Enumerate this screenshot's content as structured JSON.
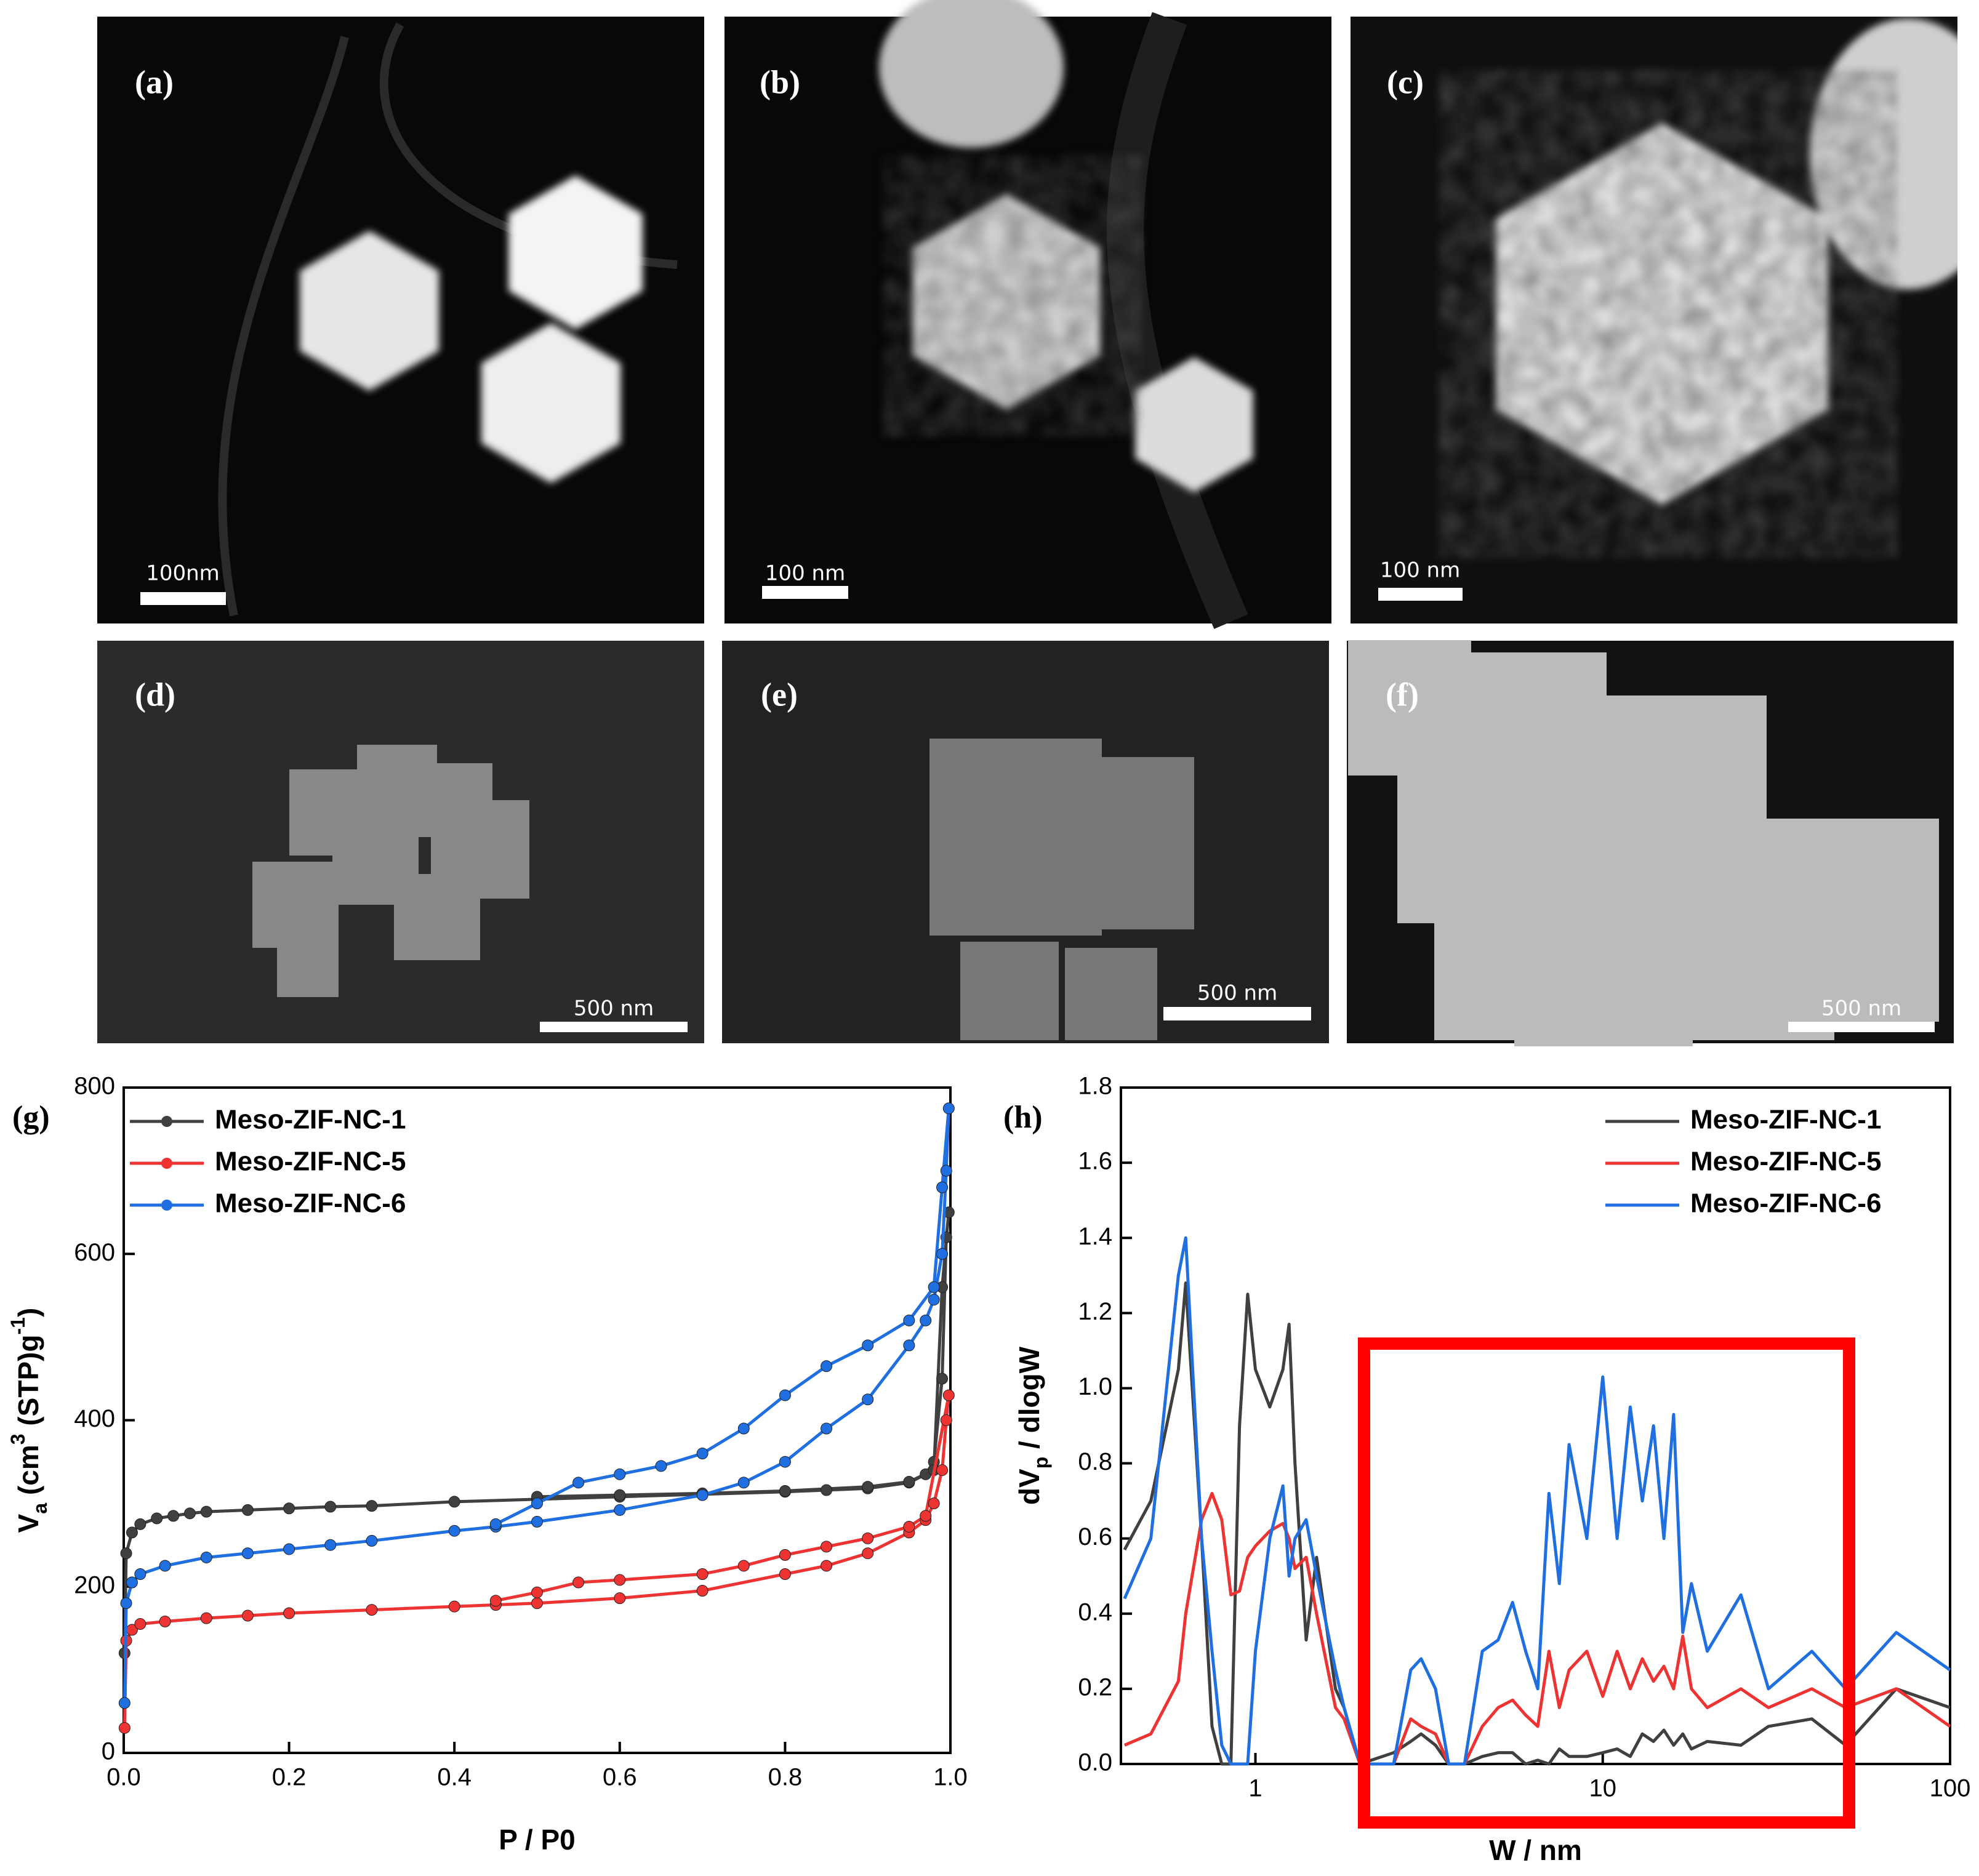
{
  "panels": [
    {
      "label": "(a)",
      "scale_bar": "100nm"
    },
    {
      "label": "(b)",
      "scale_bar": "100 nm"
    },
    {
      "label": "(c)",
      "scale_bar": "100 nm"
    },
    {
      "label": "(d)",
      "scale_bar": "500 nm"
    },
    {
      "label": "(e)",
      "scale_bar": "500 nm"
    },
    {
      "label": "(f)",
      "scale_bar": "500 nm"
    }
  ],
  "chart_data": [
    {
      "type": "line",
      "panel_label": "(g)",
      "x_label": "P / P0",
      "y_label": [
        {
          "text": "V"
        },
        {
          "text": "a",
          "script": "sub"
        },
        {
          "text": " (cm"
        },
        {
          "text": "3",
          "script": "super"
        },
        {
          "text": " (STP)g"
        },
        {
          "text": "-1",
          "script": "super"
        },
        {
          "text": ")"
        }
      ],
      "xlim": [
        0,
        1
      ],
      "ylim": [
        0,
        800
      ],
      "xticks": [
        {
          "value": 0,
          "label": "0.0"
        },
        0.2,
        0.4,
        0.6,
        0.8,
        {
          "value": 1,
          "label": "1.0"
        }
      ],
      "yticks": [
        0,
        200,
        400,
        600,
        800
      ],
      "markers": true,
      "legend": "upper left",
      "series": [
        {
          "name": "Meso-ZIF-NC-1",
          "color": "#404040",
          "x": [
            0.001,
            0.003,
            0.01,
            0.02,
            0.04,
            0.06,
            0.08,
            0.1,
            0.15,
            0.2,
            0.25,
            0.3,
            0.4,
            0.5,
            0.6,
            0.7,
            0.8,
            0.85,
            0.9,
            0.95,
            0.97,
            0.98,
            0.99,
            0.995,
            0.998,
            0.99,
            0.98,
            0.95,
            0.9,
            0.8,
            0.7,
            0.6,
            0.5
          ],
          "values": [
            120,
            240,
            265,
            275,
            282,
            285,
            288,
            290,
            292,
            294,
            296,
            297,
            302,
            305,
            308,
            311,
            314,
            316,
            318,
            325,
            335,
            350,
            450,
            620,
            650,
            560,
            340,
            326,
            320,
            315,
            312,
            310,
            308
          ]
        },
        {
          "name": "Meso-ZIF-NC-5",
          "color": "#ee3333",
          "x": [
            0.001,
            0.003,
            0.01,
            0.02,
            0.05,
            0.1,
            0.15,
            0.2,
            0.3,
            0.4,
            0.45,
            0.5,
            0.6,
            0.7,
            0.8,
            0.85,
            0.9,
            0.95,
            0.97,
            0.98,
            0.99,
            0.995,
            0.998,
            0.97,
            0.95,
            0.9,
            0.85,
            0.8,
            0.75,
            0.7,
            0.6,
            0.55,
            0.5,
            0.45
          ],
          "values": [
            30,
            135,
            148,
            155,
            158,
            162,
            165,
            168,
            172,
            176,
            178,
            180,
            186,
            195,
            215,
            225,
            240,
            265,
            280,
            300,
            340,
            400,
            430,
            285,
            272,
            258,
            248,
            238,
            225,
            215,
            208,
            205,
            193,
            183
          ]
        },
        {
          "name": "Meso-ZIF-NC-6",
          "color": "#1f6fe0",
          "x": [
            0.001,
            0.003,
            0.01,
            0.02,
            0.05,
            0.1,
            0.15,
            0.2,
            0.25,
            0.3,
            0.4,
            0.45,
            0.5,
            0.6,
            0.7,
            0.75,
            0.8,
            0.85,
            0.9,
            0.95,
            0.97,
            0.98,
            0.99,
            0.995,
            0.998,
            0.99,
            0.98,
            0.95,
            0.9,
            0.85,
            0.8,
            0.75,
            0.7,
            0.65,
            0.6,
            0.55,
            0.5,
            0.45
          ],
          "values": [
            60,
            180,
            205,
            215,
            225,
            235,
            240,
            245,
            250,
            255,
            267,
            272,
            278,
            292,
            310,
            325,
            350,
            390,
            425,
            490,
            520,
            545,
            600,
            700,
            775,
            680,
            560,
            520,
            490,
            465,
            430,
            390,
            360,
            345,
            335,
            325,
            300,
            275
          ]
        }
      ]
    },
    {
      "type": "line",
      "panel_label": "(h)",
      "x_label": "W / nm",
      "y_label": [
        {
          "text": "dV"
        },
        {
          "text": "p",
          "script": "sub"
        },
        {
          "text": " / dlogW"
        }
      ],
      "log_x": true,
      "xlim": [
        0.41,
        100
      ],
      "ylim": [
        0,
        1.8
      ],
      "xticks": [
        1,
        10,
        100
      ],
      "yticks": [
        {
          "value": 0,
          "label": "0.0"
        },
        0.2,
        0.4,
        0.6,
        0.8,
        {
          "value": 1,
          "label": "1.0"
        },
        1.2,
        1.4,
        1.6,
        1.8
      ],
      "markers": false,
      "legend": "upper right",
      "x": [
        0.42,
        0.5,
        0.6,
        0.63,
        0.7,
        0.75,
        0.8,
        0.85,
        0.9,
        0.95,
        1.0,
        1.1,
        1.2,
        1.25,
        1.3,
        1.4,
        1.5,
        1.7,
        1.8,
        2.0,
        2.5,
        2.8,
        3.0,
        3.3,
        3.6,
        4.0,
        4.5,
        5.0,
        5.5,
        6.0,
        6.5,
        7.0,
        7.5,
        8.0,
        9.0,
        10,
        11,
        12,
        13,
        14,
        15,
        16,
        17,
        18,
        20,
        25,
        30,
        40,
        50,
        70,
        100
      ],
      "series": [
        {
          "name": "Meso-ZIF-NC-1",
          "color": "#404040",
          "values": [
            0.57,
            0.7,
            1.05,
            1.28,
            0.6,
            0.1,
            0,
            0,
            0.9,
            1.25,
            1.05,
            0.95,
            1.05,
            1.17,
            0.8,
            0.33,
            0.55,
            0.2,
            0.15,
            0,
            0.03,
            0.06,
            0.08,
            0.05,
            0,
            0,
            0.02,
            0.03,
            0.03,
            0,
            0.01,
            0,
            0.04,
            0.02,
            0.02,
            0.03,
            0.04,
            0.02,
            0.08,
            0.06,
            0.09,
            0.05,
            0.08,
            0.04,
            0.06,
            0.05,
            0.1,
            0.12,
            0.05,
            0.2,
            0.15
          ]
        },
        {
          "name": "Meso-ZIF-NC-5",
          "color": "#ee3333",
          "values": [
            0.05,
            0.08,
            0.22,
            0.4,
            0.65,
            0.72,
            0.65,
            0.45,
            0.46,
            0.55,
            0.58,
            0.62,
            0.64,
            0.6,
            0.52,
            0.55,
            0.4,
            0.15,
            0.12,
            0,
            0,
            0.12,
            0.1,
            0.08,
            0,
            0,
            0.1,
            0.15,
            0.17,
            0.13,
            0.1,
            0.3,
            0.15,
            0.25,
            0.3,
            0.18,
            0.3,
            0.2,
            0.28,
            0.22,
            0.26,
            0.2,
            0.34,
            0.2,
            0.15,
            0.2,
            0.15,
            0.2,
            0.15,
            0.2,
            0.1
          ]
        },
        {
          "name": "Meso-ZIF-NC-6",
          "color": "#1f6fe0",
          "values": [
            0.44,
            0.6,
            1.3,
            1.4,
            0.6,
            0.3,
            0.05,
            0,
            0,
            0,
            0.3,
            0.6,
            0.74,
            0.5,
            0.6,
            0.65,
            0.5,
            0.25,
            0.15,
            0,
            0,
            0.25,
            0.28,
            0.2,
            0,
            0,
            0.3,
            0.33,
            0.43,
            0.3,
            0.2,
            0.72,
            0.48,
            0.85,
            0.6,
            1.03,
            0.6,
            0.95,
            0.7,
            0.9,
            0.6,
            0.93,
            0.35,
            0.48,
            0.3,
            0.45,
            0.2,
            0.3,
            0.2,
            0.35,
            0.25
          ]
        }
      ]
    }
  ]
}
